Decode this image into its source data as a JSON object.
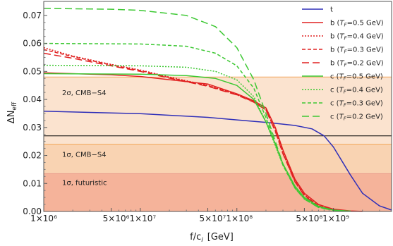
{
  "chart_data": {
    "type": "line",
    "xlabel": "f/c",
    "xlabel_sub": "i",
    "xlabel_unit": "[GeV]",
    "ylabel": "ΔN",
    "ylabel_sub": "eff",
    "x_scale": "log",
    "xlim": [
      1000000,
      4000000000
    ],
    "ylim": [
      0,
      0.075
    ],
    "x_ticks": [
      {
        "value": 1000000,
        "label": "1×10⁶"
      },
      {
        "value": 5000000,
        "label": "5×10⁶"
      },
      {
        "value": 10000000,
        "label": "1×10⁷"
      },
      {
        "value": 50000000,
        "label": "5×10⁷"
      },
      {
        "value": 100000000,
        "label": "1×10⁸"
      },
      {
        "value": 500000000,
        "label": "5×10⁸"
      },
      {
        "value": 1000000000,
        "label": "1×10⁹"
      }
    ],
    "y_ticks": [
      {
        "value": 0,
        "label": "0.00"
      },
      {
        "value": 0.01,
        "label": "0.01"
      },
      {
        "value": 0.02,
        "label": "0.02"
      },
      {
        "value": 0.03,
        "label": "0.03"
      },
      {
        "value": 0.04,
        "label": "0.04"
      },
      {
        "value": 0.05,
        "label": "0.05"
      },
      {
        "value": 0.06,
        "label": "0.06"
      },
      {
        "value": 0.07,
        "label": "0.07"
      }
    ],
    "bands": [
      {
        "label": "2σ, CMB−S4",
        "y_from": 0.024,
        "y_to": 0.048,
        "fill": "#fbe3cf",
        "border": "#f2a65a",
        "label_y": 0.0415
      },
      {
        "label": "1σ, CMB−S4",
        "y_from": 0.0135,
        "y_to": 0.024,
        "fill": "#f9d3b2",
        "border": "#f2a65a",
        "label_y": 0.0195
      },
      {
        "label": "1σ, futuristic",
        "y_from": 0,
        "y_to": 0.0135,
        "fill": "#f5b39a",
        "border": "#e99a8a",
        "label_y": 0.0095
      }
    ],
    "hline": {
      "y": 0.027,
      "color": "#000000"
    },
    "series": [
      {
        "name": "t",
        "color": "#2f2fb8",
        "dash": "",
        "x": [
          1000000,
          10000000,
          50000000,
          100000000,
          200000000,
          400000000,
          600000000,
          800000000,
          1000000000,
          1500000000,
          2000000000,
          3000000000,
          4000000000
        ],
        "y": [
          0.0358,
          0.0349,
          0.0336,
          0.0327,
          0.0318,
          0.0307,
          0.0295,
          0.027,
          0.023,
          0.013,
          0.0065,
          0.002,
          0.0005
        ]
      },
      {
        "name": "b (T_F=0.5 GeV)",
        "color": "#e02020",
        "dash": "",
        "x": [
          1000000,
          5000000,
          10000000,
          50000000,
          100000000,
          150000000,
          200000000,
          250000000,
          300000000,
          400000000,
          500000000,
          700000000,
          1000000000,
          1500000000,
          2000000000
        ],
        "y": [
          0.0495,
          0.0488,
          0.0482,
          0.0455,
          0.042,
          0.0395,
          0.037,
          0.03,
          0.022,
          0.0115,
          0.0065,
          0.0025,
          0.0008,
          0.0002,
          0.0
        ]
      },
      {
        "name": "b (T_F=0.4 GeV)",
        "color": "#e02020",
        "dash": "2,2",
        "x": [
          1000000,
          2000000,
          5000000,
          10000000,
          20000000,
          50000000,
          100000000,
          150000000,
          200000000,
          250000000,
          300000000,
          400000000,
          500000000,
          700000000,
          1000000000,
          1500000000
        ],
        "y": [
          0.0585,
          0.0555,
          0.0525,
          0.0505,
          0.048,
          0.045,
          0.0418,
          0.0392,
          0.0365,
          0.029,
          0.021,
          0.011,
          0.006,
          0.002,
          0.0006,
          0.0001
        ]
      },
      {
        "name": "b (T_F=0.3 GeV)",
        "color": "#e02020",
        "dash": "5,3",
        "x": [
          1000000,
          2000000,
          5000000,
          10000000,
          20000000,
          50000000,
          100000000,
          150000000,
          200000000,
          250000000,
          300000000,
          400000000,
          500000000,
          700000000,
          1000000000,
          1500000000
        ],
        "y": [
          0.0578,
          0.0553,
          0.0523,
          0.0503,
          0.0478,
          0.0449,
          0.0417,
          0.0391,
          0.0363,
          0.0288,
          0.0208,
          0.0108,
          0.0058,
          0.002,
          0.0006,
          0.0001
        ]
      },
      {
        "name": "b (T_F=0.2 GeV)",
        "color": "#e02020",
        "dash": "10,5",
        "x": [
          1000000,
          2000000,
          5000000,
          10000000,
          20000000,
          50000000,
          100000000,
          150000000,
          200000000,
          250000000,
          300000000,
          400000000,
          500000000,
          700000000,
          1000000000,
          1500000000
        ],
        "y": [
          0.0565,
          0.0547,
          0.052,
          0.05,
          0.0476,
          0.0447,
          0.0416,
          0.039,
          0.0362,
          0.0286,
          0.0206,
          0.0106,
          0.0056,
          0.0019,
          0.0005,
          0.0001
        ]
      },
      {
        "name": "c (T_F=0.5 GeV)",
        "color": "#3cc832",
        "dash": "",
        "x": [
          1000000,
          10000000,
          30000000,
          60000000,
          100000000,
          150000000,
          200000000,
          250000000,
          300000000,
          400000000,
          500000000,
          700000000,
          1000000000,
          1500000000
        ],
        "y": [
          0.0492,
          0.049,
          0.0485,
          0.0475,
          0.045,
          0.04,
          0.032,
          0.024,
          0.017,
          0.009,
          0.005,
          0.0018,
          0.0005,
          0.0001
        ]
      },
      {
        "name": "c (T_F=0.4 GeV)",
        "color": "#3cc832",
        "dash": "2,2",
        "x": [
          1000000,
          10000000,
          30000000,
          60000000,
          100000000,
          150000000,
          200000000,
          250000000,
          300000000,
          400000000,
          500000000,
          700000000,
          1000000000,
          1500000000
        ],
        "y": [
          0.0522,
          0.052,
          0.0515,
          0.05,
          0.047,
          0.041,
          0.032,
          0.0235,
          0.0165,
          0.0085,
          0.0047,
          0.0016,
          0.0004,
          0.0001
        ]
      },
      {
        "name": "c (T_F=0.3 GeV)",
        "color": "#3cc832",
        "dash": "5,3",
        "x": [
          1000000,
          10000000,
          30000000,
          60000000,
          100000000,
          150000000,
          200000000,
          250000000,
          300000000,
          400000000,
          500000000,
          700000000,
          1000000000,
          1500000000
        ],
        "y": [
          0.06,
          0.0598,
          0.059,
          0.0565,
          0.052,
          0.044,
          0.0335,
          0.024,
          0.0165,
          0.0083,
          0.0045,
          0.0015,
          0.0004,
          0.0001
        ]
      },
      {
        "name": "c (T_F=0.2 GeV)",
        "color": "#3cc832",
        "dash": "10,5",
        "x": [
          1000000,
          5000000,
          10000000,
          30000000,
          60000000,
          100000000,
          150000000,
          200000000,
          250000000,
          300000000,
          400000000,
          500000000,
          700000000,
          1000000000,
          1500000000
        ],
        "y": [
          0.0725,
          0.0722,
          0.0718,
          0.07,
          0.066,
          0.0585,
          0.047,
          0.035,
          0.025,
          0.017,
          0.0083,
          0.0044,
          0.0014,
          0.0004,
          0.0001
        ]
      }
    ],
    "legend": {
      "placement": "top-right",
      "entries": [
        {
          "prefix": "t",
          "tf": "",
          "suffix": ""
        },
        {
          "prefix": "b (",
          "tf": "F",
          "suffix": "=0.5 GeV)"
        },
        {
          "prefix": "b (",
          "tf": "F",
          "suffix": "=0.4 GeV)"
        },
        {
          "prefix": "b (",
          "tf": "F",
          "suffix": "=0.3 GeV)"
        },
        {
          "prefix": "b (",
          "tf": "F",
          "suffix": "=0.2 GeV)"
        },
        {
          "prefix": "c (",
          "tf": "F",
          "suffix": "=0.5 GeV)"
        },
        {
          "prefix": "c (",
          "tf": "F",
          "suffix": "=0.4 GeV)"
        },
        {
          "prefix": "c (",
          "tf": "F",
          "suffix": "=0.3 GeV)"
        },
        {
          "prefix": "c (",
          "tf": "F",
          "suffix": "=0.2 GeV)"
        }
      ]
    }
  }
}
